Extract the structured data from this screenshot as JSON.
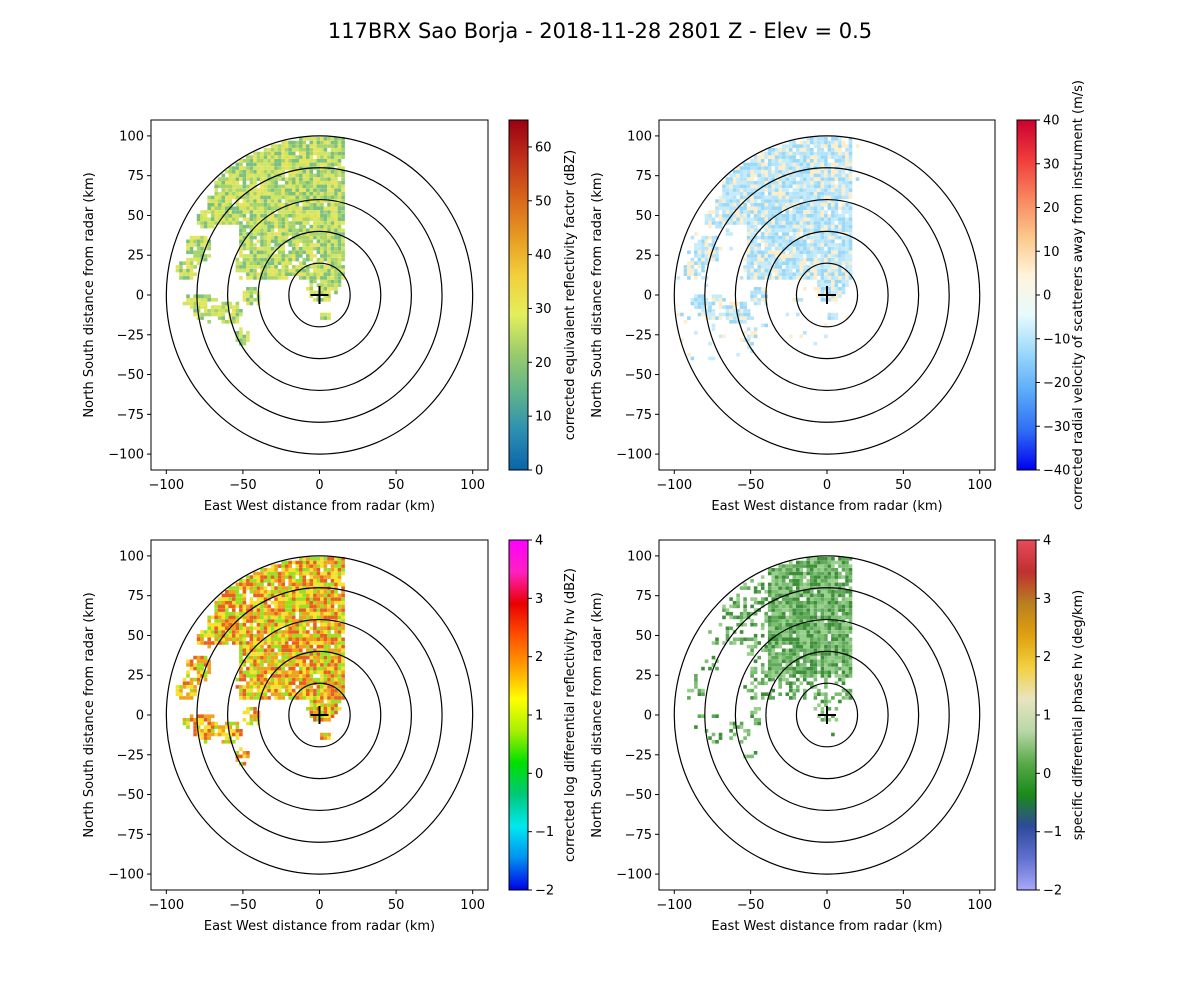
{
  "title": "117BRX Sao Borja - 2018-11-28 2801 Z -  Elev = 0.5",
  "chart_data": [
    {
      "type": "heatmap",
      "name": "reflectivity",
      "xlabel": "East West distance from radar (km)",
      "ylabel": "North South distance from radar (km)",
      "xlim": [
        -110,
        110
      ],
      "ylim": [
        -110,
        110
      ],
      "xticks": [
        -100,
        -50,
        0,
        50,
        100
      ],
      "yticks": [
        -100,
        -75,
        -50,
        -25,
        0,
        25,
        50,
        75,
        100
      ],
      "range_rings_km": [
        20,
        40,
        60,
        80,
        100
      ],
      "colorbar": {
        "label": "corrected equivalent reflectivity factor (dBZ)",
        "min": 0,
        "max": 65,
        "ticks": [
          0,
          10,
          20,
          30,
          40,
          50,
          60
        ],
        "colors": [
          "#0a64a8",
          "#2c8fb3",
          "#5fb48a",
          "#9ccc6a",
          "#e4ef5b",
          "#f2cf3b",
          "#e69a22",
          "#d8641a",
          "#c0301a",
          "#9a0010"
        ]
      },
      "echo_color": [
        "#7cc07f",
        "#a7d46a",
        "#cfe562",
        "#e6e45c"
      ]
    },
    {
      "type": "heatmap",
      "name": "velocity",
      "xlabel": "East West distance from radar (km)",
      "ylabel": "North South distance from radar (km)",
      "xlim": [
        -110,
        110
      ],
      "ylim": [
        -110,
        110
      ],
      "xticks": [
        -100,
        -50,
        0,
        50,
        100
      ],
      "yticks": [
        -100,
        -75,
        -50,
        -25,
        0,
        25,
        50,
        75,
        100
      ],
      "range_rings_km": [
        20,
        40,
        60,
        80,
        100
      ],
      "colorbar": {
        "label": "corrected radial velocity of scatterers away from instrument (m/s)",
        "min": -40,
        "max": 40,
        "ticks": [
          -40,
          -30,
          -20,
          -10,
          0,
          10,
          20,
          30,
          40
        ],
        "colors": [
          "#0000f0",
          "#2f6cf5",
          "#5aaaf8",
          "#9ad8fb",
          "#e8fbfd",
          "#fff4dc",
          "#fbc88a",
          "#f8855e",
          "#f03b3b",
          "#cc0030"
        ]
      },
      "echo_color": [
        "#9ad8f7",
        "#b5e4fa",
        "#c6ecfb",
        "#fdeec9"
      ]
    },
    {
      "type": "heatmap",
      "name": "differential_reflectivity",
      "xlabel": "East West distance from radar (km)",
      "ylabel": "North South distance from radar (km)",
      "xlim": [
        -110,
        110
      ],
      "ylim": [
        -110,
        110
      ],
      "xticks": [
        -100,
        -50,
        0,
        50,
        100
      ],
      "yticks": [
        -100,
        -75,
        -50,
        -25,
        0,
        25,
        50,
        75,
        100
      ],
      "range_rings_km": [
        20,
        40,
        60,
        80,
        100
      ],
      "colorbar": {
        "label": "corrected log differential reflectivity hv (dBZ)",
        "min": -2,
        "max": 4,
        "ticks": [
          -2,
          -1,
          0,
          1,
          2,
          3,
          4
        ],
        "colors": [
          "#0000e8",
          "#0090f0",
          "#00e8f0",
          "#00c87a",
          "#00e000",
          "#a8f000",
          "#ffff00",
          "#ffa000",
          "#ff5000",
          "#e80000",
          "#ff20c0",
          "#ff00ff"
        ]
      },
      "echo_color": [
        "#f7e12a",
        "#f0a21c",
        "#e8601e",
        "#9be020"
      ]
    },
    {
      "type": "heatmap",
      "name": "specific_differential_phase",
      "xlabel": "East West distance from radar (km)",
      "ylabel": "North South distance from radar (km)",
      "xlim": [
        -110,
        110
      ],
      "ylim": [
        -110,
        110
      ],
      "xticks": [
        -100,
        -50,
        0,
        50,
        100
      ],
      "yticks": [
        -100,
        -75,
        -50,
        -25,
        0,
        25,
        50,
        75,
        100
      ],
      "range_rings_km": [
        20,
        40,
        60,
        80,
        100
      ],
      "colorbar": {
        "label": "specific differential phase hv (deg/km)",
        "min": -2,
        "max": 4,
        "ticks": [
          -2,
          -1,
          0,
          1,
          2,
          3,
          4
        ],
        "colors": [
          "#a8a8f8",
          "#6070d0",
          "#2e4a9a",
          "#1a8a1a",
          "#5aaa4a",
          "#b8d8a8",
          "#e8e4c0",
          "#f2d040",
          "#e0a010",
          "#b88020",
          "#c03030",
          "#e84a5a"
        ]
      },
      "echo_color": [
        "#5fa85a",
        "#7cbf73",
        "#99cf8d",
        "#3f8f3a"
      ]
    }
  ]
}
